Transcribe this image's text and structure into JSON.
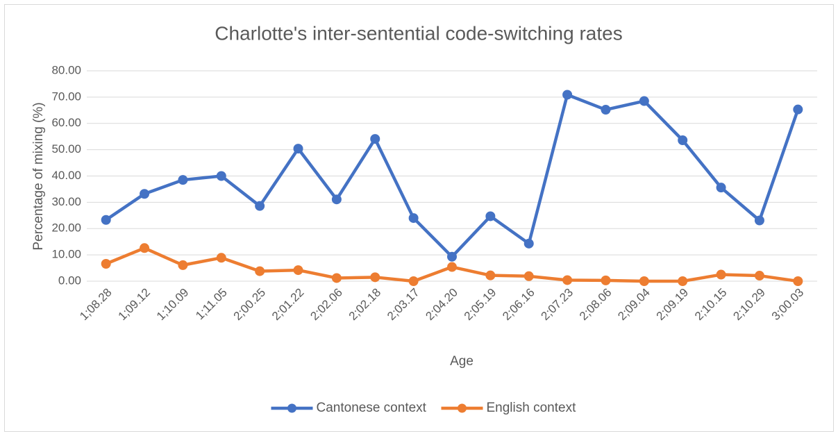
{
  "chart_data": {
    "type": "line",
    "title": "Charlotte's inter-sentential code-switching rates",
    "x_label": "Age",
    "y_label": "Percentage of mixing (%)",
    "categories": [
      "1;08.28",
      "1;09.12",
      "1;10.09",
      "1;11.05",
      "2;00.25",
      "2;01.22",
      "2;02.06",
      "2;02.18",
      "2;03.17",
      "2;04.20",
      "2;05.19",
      "2;06.16",
      "2;07.23",
      "2;08.06",
      "2;09.04",
      "2;09.19",
      "2;10.15",
      "2;10.29",
      "3;00.03"
    ],
    "series": [
      {
        "name": "Cantonese context",
        "color": "#4472c4",
        "values": [
          23.3,
          33.2,
          38.5,
          40.0,
          28.6,
          50.4,
          31.1,
          54.1,
          24.0,
          9.3,
          24.7,
          14.3,
          70.9,
          65.2,
          68.5,
          53.6,
          35.6,
          23.1,
          65.3
        ]
      },
      {
        "name": "English context",
        "color": "#ed7d31",
        "values": [
          6.6,
          12.6,
          6.1,
          8.9,
          3.8,
          4.2,
          1.2,
          1.5,
          0.0,
          5.4,
          2.2,
          1.9,
          0.4,
          0.3,
          0.0,
          0.0,
          2.5,
          2.1,
          0.0
        ]
      }
    ],
    "ylim": [
      0,
      80
    ],
    "yticks": [
      {
        "value": 0,
        "label": "0.00"
      },
      {
        "value": 10,
        "label": "10.00"
      },
      {
        "value": 20,
        "label": "20.00"
      },
      {
        "value": 30,
        "label": "30.00"
      },
      {
        "value": 40,
        "label": "40.00"
      },
      {
        "value": 50,
        "label": "50.00"
      },
      {
        "value": 60,
        "label": "60.00"
      },
      {
        "value": 70,
        "label": "70.00"
      },
      {
        "value": 80,
        "label": "80.00"
      }
    ],
    "grid": true,
    "legend": "bottom"
  }
}
